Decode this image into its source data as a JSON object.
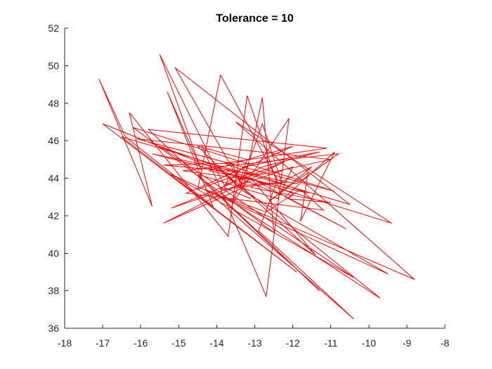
{
  "chart_data": {
    "type": "line",
    "title": "Tolerance = 10",
    "xlabel": "",
    "ylabel": "",
    "xlim": [
      -18,
      -8
    ],
    "ylim": [
      36,
      52
    ],
    "xticks": [
      -18,
      -17,
      -16,
      -15,
      -14,
      -13,
      -12,
      -11,
      -10,
      -9,
      -8
    ],
    "yticks": [
      36,
      38,
      40,
      42,
      44,
      46,
      48,
      50,
      52
    ],
    "grid": false,
    "legend": "none",
    "series": [
      {
        "color": "#ff0000",
        "x": [
          -14.4,
          -12.7,
          -12.1,
          -13.6,
          -13.2,
          -14.5,
          -13.4,
          -12.8,
          -12.3,
          -11.5,
          -12.6,
          -11.6,
          -11.8,
          -10.9,
          -12.2,
          -10.6,
          -13.1,
          -11.4,
          -13.4,
          -12.1,
          -13.9,
          -13.3,
          -11.3,
          -12.8,
          -13.8,
          -15.5,
          -14.4,
          -15.3,
          -14.1,
          -16.4,
          -17.1,
          -15.7,
          -16.3,
          -13.7,
          -13.2,
          -12.3,
          -17.0,
          -11.9,
          -16.5,
          -10.5,
          -15.1,
          -13.3,
          -12.8,
          -12.5,
          -16.2,
          -10.9,
          -16.1,
          -11.0,
          -12.8,
          -15.4,
          -13.6,
          -13.3,
          -15.4,
          -12.2,
          -15.2,
          -12.0,
          -12.4,
          -14.5,
          -11.3,
          -15.8,
          -11.1,
          -13.8,
          -11.6,
          -13.2,
          -15.7,
          -11.9,
          -10.8,
          -14.9,
          -13.0,
          -14.2,
          -12.0,
          -14.8,
          -11.2,
          -11.8,
          -12.7,
          -13.8,
          -9.7,
          -14.0,
          -13.3,
          -9.5,
          -15.2,
          -10.4,
          -15.5,
          -12.0,
          -12.1,
          -11.0,
          -13.1,
          -12.9,
          -9.4,
          -13.5,
          -8.8,
          -14.3,
          -10.4,
          -12.9,
          -12.4,
          -13.9,
          -14.5,
          -13.7,
          -13.8,
          -13.1
        ],
        "y": [
          45.8,
          37.7,
          47.2,
          42.6,
          45.0,
          45.7,
          43.5,
          46.9,
          43.8,
          44.6,
          42.8,
          44.3,
          41.7,
          45.4,
          43.0,
          41.3,
          44.0,
          39.9,
          43.6,
          43.8,
          43.4,
          44.6,
          45.4,
          44.6,
          43.6,
          50.6,
          44.4,
          48.6,
          42.5,
          46.2,
          49.3,
          42.5,
          47.5,
          40.9,
          48.4,
          43.1,
          46.9,
          39.0,
          46.2,
          42.6,
          49.9,
          43.5,
          48.3,
          41.1,
          46.7,
          43.3,
          46.1,
          45.0,
          44.2,
          44.7,
          44.8,
          43.5,
          41.6,
          44.9,
          42.4,
          44.6,
          42.9,
          44.2,
          38.0,
          46.6,
          45.6,
          44.8,
          43.2,
          44.0,
          45.3,
          43.7,
          45.3,
          44.4,
          43.9,
          44.4,
          45.7,
          43.2,
          42.3,
          43.4,
          42.2,
          43.0,
          37.6,
          44.6,
          43.3,
          38.9,
          44.2,
          38.7,
          45.7,
          43.2,
          42.9,
          42.7,
          43.5,
          43.8,
          41.6,
          47.0,
          38.6,
          43.4,
          36.5,
          41.2,
          43.9,
          49.5,
          43.4,
          44.0,
          43.5,
          42.9
        ]
      }
    ]
  }
}
